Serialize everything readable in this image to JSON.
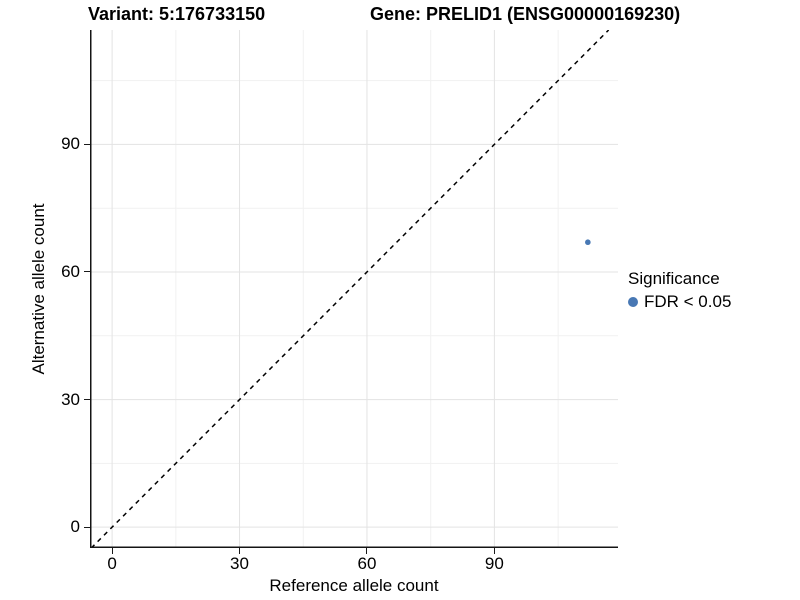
{
  "figure": {
    "background": "#ffffff"
  },
  "chart_data": {
    "type": "scatter",
    "title_left": "Variant: 5:176733150",
    "title_right": "Gene: PRELID1 (ENSG00000169230)",
    "xlabel": "Reference allele count",
    "ylabel": "Alternative allele count",
    "xlim": [
      -5.2,
      119.1
    ],
    "ylim": [
      -4.9,
      116.9
    ],
    "x_major_ticks": [
      0,
      30,
      60,
      90
    ],
    "y_major_ticks": [
      0,
      30,
      60,
      90
    ],
    "x_minor_gridlines": [
      15,
      45,
      75,
      105
    ],
    "y_minor_gridlines": [
      15,
      45,
      75,
      105
    ],
    "grid": true,
    "identity_line": {
      "slope": 1,
      "intercept": 0,
      "style": "dashed",
      "color": "#000000"
    },
    "points": [
      {
        "x": 112,
        "y": 67,
        "series": "FDR < 0.05",
        "color": "#4878b4",
        "radius_px": 2.8
      }
    ],
    "legend": {
      "title": "Significance",
      "position": "right",
      "entries": [
        {
          "label": "FDR < 0.05",
          "color": "#4878b4",
          "key_radius_px": 5
        }
      ]
    },
    "colors": {
      "point": "#4878b4",
      "grid_major": "#e3e3e3",
      "grid_minor": "#f1f1f1",
      "axis_line": "#141414",
      "tick_mark": "#1a1a1a",
      "text": "#000000"
    }
  }
}
